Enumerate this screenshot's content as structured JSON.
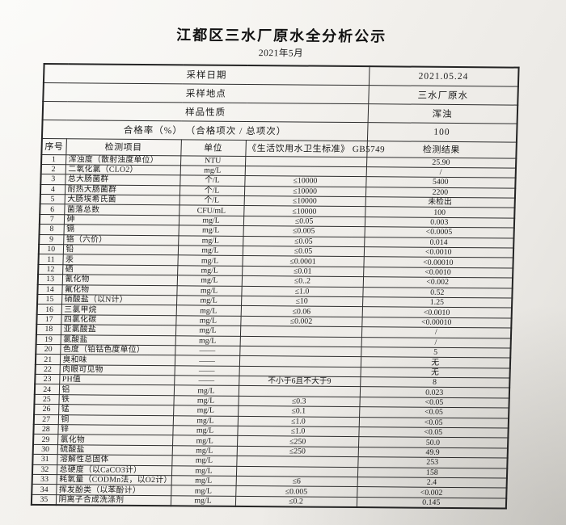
{
  "title": "江都区三水厂原水全分析公示",
  "subtitle": "2021年5月",
  "info_rows": [
    {
      "label": "采样日期",
      "value": "2021.05.24"
    },
    {
      "label": "采样地点",
      "value": "三水厂原水"
    },
    {
      "label": "样品性质",
      "value": "浑浊"
    },
    {
      "label": "合格率（%） （合格项次 / 总项次）",
      "value": "100"
    }
  ],
  "columns": [
    "序号",
    "检测项目",
    "单位",
    "《生活饮用水卫生标准》 GB5749",
    "检测结果"
  ],
  "rows": [
    {
      "n": "1",
      "item": "浑浊度（散射浊度单位）",
      "unit": "NTU",
      "std": "",
      "result": "25.90"
    },
    {
      "n": "2",
      "item": "二氧化氯（CLO2）",
      "unit": "mg/L",
      "std": "",
      "result": "/"
    },
    {
      "n": "3",
      "item": "总大肠菌群",
      "unit": "个/L",
      "std": "≤10000",
      "result": "5400"
    },
    {
      "n": "4",
      "item": "耐热大肠菌群",
      "unit": "个/L",
      "std": "≤10000",
      "result": "2200"
    },
    {
      "n": "5",
      "item": "大肠埃希氏菌",
      "unit": "个/L",
      "std": "≤10000",
      "result": "未检出"
    },
    {
      "n": "6",
      "item": "菌落总数",
      "unit": "CFU/mL",
      "std": "≤10000",
      "result": "100"
    },
    {
      "n": "7",
      "item": "砷",
      "unit": "mg/L",
      "std": "≤0.05",
      "result": "0.003"
    },
    {
      "n": "8",
      "item": "镉",
      "unit": "mg/L",
      "std": "≤0.005",
      "result": "<0.0005"
    },
    {
      "n": "9",
      "item": "铬（六价）",
      "unit": "mg/L",
      "std": "≤0.05",
      "result": "0.014"
    },
    {
      "n": "10",
      "item": "铅",
      "unit": "mg/L",
      "std": "≤0.05",
      "result": "<0.0010"
    },
    {
      "n": "11",
      "item": "汞",
      "unit": "mg/L",
      "std": "≤0.0001",
      "result": "<0.00010"
    },
    {
      "n": "12",
      "item": "硒",
      "unit": "mg/L",
      "std": "≤0.01",
      "result": "<0.0010"
    },
    {
      "n": "13",
      "item": "氰化物",
      "unit": "mg/L",
      "std": "≤0..2",
      "result": "<0.002"
    },
    {
      "n": "14",
      "item": "氟化物",
      "unit": "mg/L",
      "std": "≤1.0",
      "result": "0.52"
    },
    {
      "n": "15",
      "item": "硝酸盐（以N计）",
      "unit": "mg/L",
      "std": "≤10",
      "result": "1.25"
    },
    {
      "n": "16",
      "item": "三氯甲烷",
      "unit": "mg/L",
      "std": "≤0.06",
      "result": "<0.0010"
    },
    {
      "n": "17",
      "item": "四氯化碳",
      "unit": "mg/L",
      "std": "≤0.002",
      "result": "<0.00010"
    },
    {
      "n": "18",
      "item": "亚氯酸盐",
      "unit": "mg/L",
      "std": "",
      "result": "/"
    },
    {
      "n": "19",
      "item": "氯酸盐",
      "unit": "mg/L",
      "std": "",
      "result": "/"
    },
    {
      "n": "20",
      "item": "色度（铂钴色度单位）",
      "unit": "——",
      "std": "",
      "result": "5"
    },
    {
      "n": "21",
      "item": "臭和味",
      "unit": "——",
      "std": "",
      "result": "无"
    },
    {
      "n": "22",
      "item": "肉眼可见物",
      "unit": "——",
      "std": "",
      "result": "无"
    },
    {
      "n": "23",
      "item": "PH值",
      "unit": "——",
      "std": "不小于6且不大于9",
      "result": "8"
    },
    {
      "n": "24",
      "item": "铝",
      "unit": "mg/L",
      "std": "",
      "result": "0.023"
    },
    {
      "n": "25",
      "item": "铁",
      "unit": "mg/L",
      "std": "≤0.3",
      "result": "<0.05"
    },
    {
      "n": "26",
      "item": "锰",
      "unit": "mg/L",
      "std": "≤0.1",
      "result": "<0.05"
    },
    {
      "n": "27",
      "item": "铜",
      "unit": "mg/L",
      "std": "≤1.0",
      "result": "<0.05"
    },
    {
      "n": "28",
      "item": "锌",
      "unit": "mg/L",
      "std": "≤1.0",
      "result": "<0.05"
    },
    {
      "n": "29",
      "item": "氯化物",
      "unit": "mg/L",
      "std": "≤250",
      "result": "50.0"
    },
    {
      "n": "30",
      "item": "硫酸盐",
      "unit": "mg/L",
      "std": "≤250",
      "result": "49.9"
    },
    {
      "n": "31",
      "item": "溶解性总固体",
      "unit": "mg/L",
      "std": "",
      "result": "253"
    },
    {
      "n": "32",
      "item": "总硬度（以CaCO3计）",
      "unit": "mg/L",
      "std": "",
      "result": "158"
    },
    {
      "n": "33",
      "item": "耗氧量（CODMn法，以O2计）",
      "unit": "mg/L",
      "std": "≤6",
      "result": "2.4"
    },
    {
      "n": "34",
      "item": "挥发酚类（以苯酚计）",
      "unit": "mg/L",
      "std": "≤0.005",
      "result": "<0.002"
    },
    {
      "n": "35",
      "item": "阴离子合成洗涤剂",
      "unit": "mg/L",
      "std": "≤0.2",
      "result": "0.145"
    }
  ]
}
